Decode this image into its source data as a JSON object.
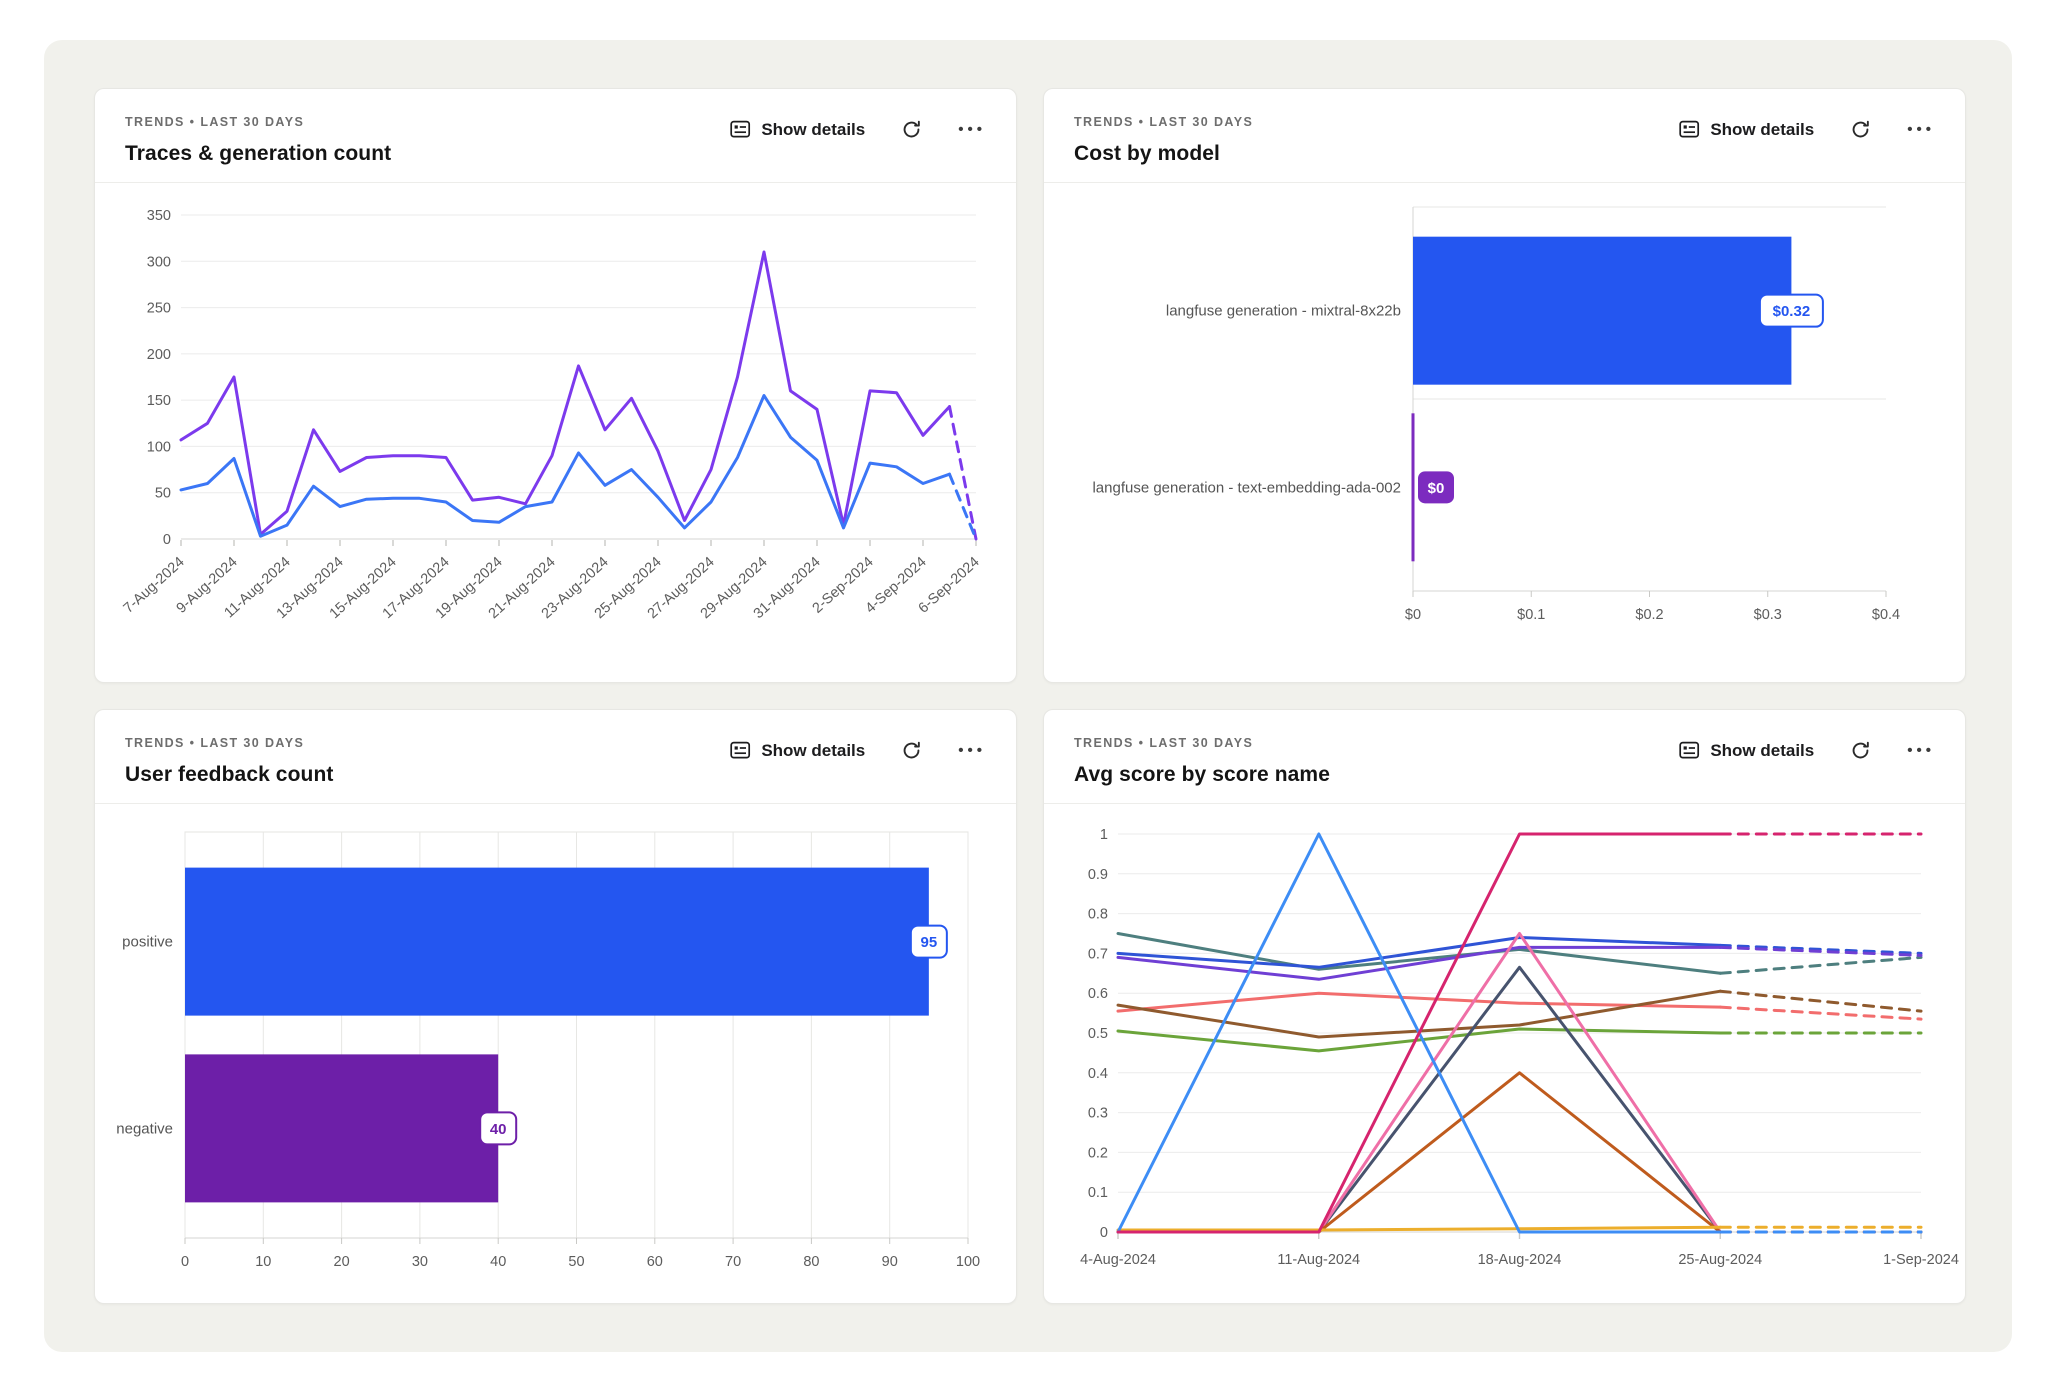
{
  "panels": [
    {
      "kicker": "TRENDS • LAST 30 DAYS",
      "title": "Traces & generation count",
      "show_details": "Show details",
      "more": "•••"
    },
    {
      "kicker": "TRENDS • LAST 30 DAYS",
      "title": "Cost by model",
      "show_details": "Show details",
      "more": "•••"
    },
    {
      "kicker": "TRENDS • LAST 30 DAYS",
      "title": "User feedback count",
      "show_details": "Show details",
      "more": "•••"
    },
    {
      "kicker": "TRENDS • LAST 30 DAYS",
      "title": "Avg score by score name",
      "show_details": "Show details",
      "more": "•••"
    }
  ],
  "colors": {
    "dashboard_bg": "#f1f1ec",
    "card_bg": "#ffffff",
    "grid_light": "#ebebeb",
    "axis": "#d6d6d3",
    "blue_bar": "#2456f0",
    "purple_bar": "#7c2bbf",
    "deep_purple_bar": "#6d1fa8"
  },
  "chart_data": [
    {
      "type": "line",
      "title": "Traces & generation count",
      "x": [
        "7-Aug-2024",
        "8-Aug-2024",
        "9-Aug-2024",
        "10-Aug-2024",
        "11-Aug-2024",
        "12-Aug-2024",
        "13-Aug-2024",
        "14-Aug-2024",
        "15-Aug-2024",
        "16-Aug-2024",
        "17-Aug-2024",
        "18-Aug-2024",
        "19-Aug-2024",
        "20-Aug-2024",
        "21-Aug-2024",
        "22-Aug-2024",
        "23-Aug-2024",
        "24-Aug-2024",
        "25-Aug-2024",
        "26-Aug-2024",
        "27-Aug-2024",
        "28-Aug-2024",
        "29-Aug-2024",
        "30-Aug-2024",
        "31-Aug-2024",
        "1-Sep-2024",
        "2-Sep-2024",
        "3-Sep-2024",
        "4-Sep-2024",
        "5-Sep-2024",
        "6-Sep-2024"
      ],
      "x_tick_every": 2,
      "ylim": [
        0,
        350
      ],
      "ytick_step": 50,
      "grid": "horizontal",
      "legend": "none",
      "dashed_tail_points": 1,
      "series": [
        {
          "color": "#7c3aed",
          "values": [
            107,
            125,
            175,
            5,
            30,
            118,
            73,
            88,
            90,
            90,
            88,
            42,
            45,
            38,
            90,
            187,
            118,
            152,
            95,
            20,
            75,
            175,
            310,
            160,
            140,
            15,
            160,
            158,
            112,
            143,
            0
          ]
        },
        {
          "color": "#3b76f6",
          "values": [
            53,
            60,
            87,
            3,
            15,
            57,
            35,
            43,
            44,
            44,
            40,
            20,
            18,
            35,
            40,
            93,
            58,
            75,
            45,
            12,
            40,
            88,
            155,
            110,
            85,
            12,
            82,
            78,
            60,
            70,
            0
          ]
        }
      ]
    },
    {
      "type": "bar",
      "orientation": "horizontal",
      "title": "Cost by model",
      "categories": [
        "langfuse generation - mixtral-8x22b",
        "langfuse generation - text-embedding-ada-002"
      ],
      "values": [
        0.32,
        0
      ],
      "value_labels": [
        "$0.32",
        "$0"
      ],
      "bar_colors": [
        "#2456f0",
        "#7c2bbf"
      ],
      "badge_styles": [
        "outline",
        "solid"
      ],
      "xlim": [
        0,
        0.4
      ],
      "xticks": [
        "$0",
        "$0.1",
        "$0.2",
        "$0.3",
        "$0.4"
      ],
      "grid": "minimal"
    },
    {
      "type": "bar",
      "orientation": "horizontal",
      "title": "User feedback count",
      "categories": [
        "positive",
        "negative"
      ],
      "values": [
        95,
        40
      ],
      "value_labels": [
        "95",
        "40"
      ],
      "bar_colors": [
        "#2456f0",
        "#6d1fa8"
      ],
      "badge_styles": [
        "outline",
        "outline"
      ],
      "xlim": [
        0,
        100
      ],
      "xticks": [
        "0",
        "10",
        "20",
        "30",
        "40",
        "50",
        "60",
        "70",
        "80",
        "90",
        "100"
      ],
      "grid": "vertical"
    },
    {
      "type": "line",
      "title": "Avg score by score name",
      "x": [
        "4-Aug-2024",
        "11-Aug-2024",
        "18-Aug-2024",
        "25-Aug-2024",
        "1-Sep-2024"
      ],
      "x_tick_every": 1,
      "ylim": [
        0,
        1
      ],
      "ytick_step": 0.1,
      "grid": "horizontal",
      "legend": "none",
      "dashed_tail_points": 1,
      "series": [
        {
          "color": "#4e7f7f",
          "values": [
            0.75,
            0.66,
            0.71,
            0.65,
            0.69
          ]
        },
        {
          "color": "#2f54d6",
          "values": [
            0.7,
            0.665,
            0.74,
            0.72,
            0.7
          ]
        },
        {
          "color": "#6f3fd4",
          "values": [
            0.69,
            0.635,
            0.715,
            0.715,
            0.695
          ]
        },
        {
          "color": "#f26d6d",
          "values": [
            0.555,
            0.6,
            0.575,
            0.565,
            0.535
          ]
        },
        {
          "color": "#8f5a2e",
          "values": [
            0.57,
            0.49,
            0.52,
            0.605,
            0.555
          ]
        },
        {
          "color": "#6ba43a",
          "values": [
            0.505,
            0.455,
            0.51,
            0.5,
            0.5
          ]
        },
        {
          "color": "#47536e",
          "values": [
            0,
            0,
            0.665,
            0,
            0
          ]
        },
        {
          "color": "#ef6fa7",
          "values": [
            0,
            0,
            0.75,
            0,
            0
          ]
        },
        {
          "color": "#bf5b1d",
          "values": [
            0,
            0,
            0.4,
            0,
            0
          ]
        },
        {
          "color": "#ecae2c",
          "values": [
            0.005,
            0.005,
            0.008,
            0.012,
            0.012
          ]
        },
        {
          "color": "#3d8df5",
          "values": [
            0,
            1,
            0,
            0,
            0
          ]
        },
        {
          "color": "#d6246e",
          "values": [
            0,
            0,
            1,
            1,
            1
          ]
        }
      ]
    }
  ]
}
